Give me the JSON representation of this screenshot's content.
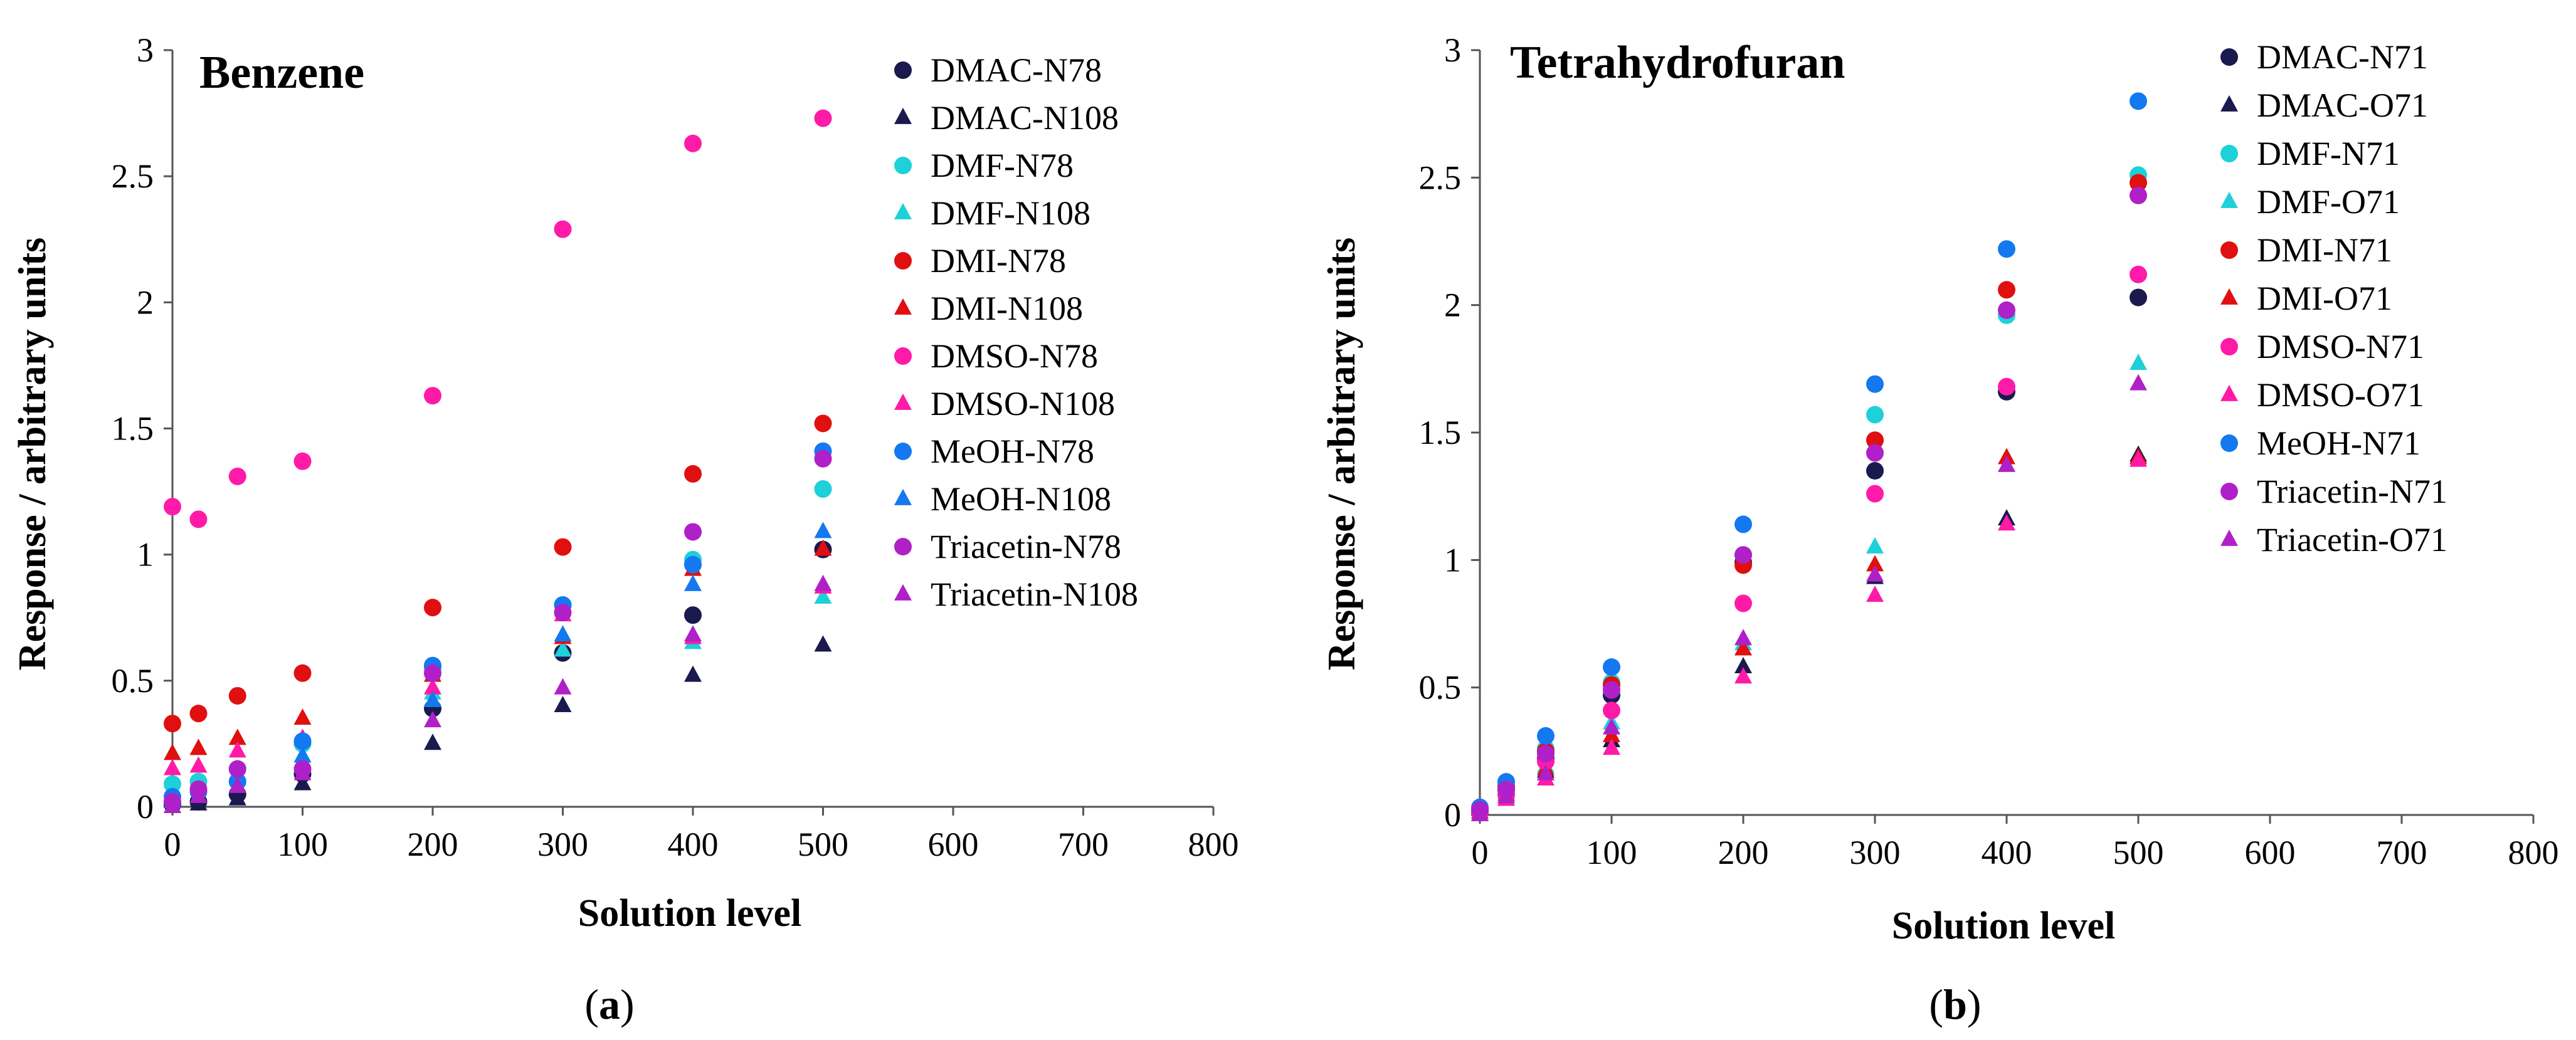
{
  "colors": {
    "DMAC": "#1a1a4e",
    "DMF": "#1ed0d8",
    "DMI": "#e01010",
    "DMSO": "#ff1aa8",
    "MeOH": "#1478f0",
    "Triacetin": "#b020c8"
  },
  "chart_data": [
    {
      "type": "scatter",
      "panel": "a",
      "title": "Benzene",
      "xlabel": "Solution level",
      "ylabel": "Response / arbitrary units",
      "xlim": [
        0,
        800
      ],
      "ylim": [
        0,
        3
      ],
      "xticks": [
        "0",
        "100",
        "200",
        "300",
        "400",
        "500",
        "600",
        "700",
        "800"
      ],
      "yticks": [
        "0",
        "0.5",
        "1",
        "1.5",
        "2",
        "2.5",
        "3"
      ],
      "legend_position": "right",
      "x": [
        0,
        20,
        50,
        100,
        200,
        300,
        400,
        500
      ],
      "series": [
        {
          "name": "DMAC-N78",
          "solvent": "DMAC",
          "marker": "circle",
          "values": [
            0.01,
            0.02,
            0.05,
            0.13,
            0.39,
            0.61,
            0.76,
            1.02
          ]
        },
        {
          "name": "DMAC-N108",
          "solvent": "DMAC",
          "marker": "triangle",
          "values": [
            0.0,
            0.01,
            0.03,
            0.09,
            0.25,
            0.4,
            0.52,
            0.64
          ]
        },
        {
          "name": "DMF-N78",
          "solvent": "DMF",
          "marker": "circle",
          "values": [
            0.09,
            0.1,
            0.15,
            0.25,
            0.55,
            0.8,
            0.98,
            1.26
          ]
        },
        {
          "name": "DMF-N108",
          "solvent": "DMF",
          "marker": "triangle",
          "values": [
            0.07,
            0.08,
            0.12,
            0.2,
            0.45,
            0.62,
            0.65,
            0.83
          ]
        },
        {
          "name": "DMI-N78",
          "solvent": "DMI",
          "marker": "circle",
          "values": [
            0.33,
            0.37,
            0.44,
            0.53,
            0.79,
            1.03,
            1.32,
            1.52
          ]
        },
        {
          "name": "DMI-N108",
          "solvent": "DMI",
          "marker": "triangle",
          "values": [
            0.21,
            0.23,
            0.27,
            0.35,
            0.52,
            0.67,
            0.94,
            1.02
          ]
        },
        {
          "name": "DMSO-N78",
          "solvent": "DMSO",
          "marker": "circle",
          "values": [
            1.19,
            1.14,
            1.31,
            1.37,
            1.63,
            2.29,
            2.63,
            2.73
          ]
        },
        {
          "name": "DMSO-N108",
          "solvent": "DMSO",
          "marker": "triangle",
          "values": [
            0.15,
            0.16,
            0.22,
            0.27,
            0.47,
            0.76,
            0.67,
            0.87
          ]
        },
        {
          "name": "MeOH-N78",
          "solvent": "MeOH",
          "marker": "circle",
          "values": [
            0.04,
            0.06,
            0.1,
            0.26,
            0.56,
            0.8,
            0.96,
            1.41
          ]
        },
        {
          "name": "MeOH-N108",
          "solvent": "MeOH",
          "marker": "triangle",
          "values": [
            0.02,
            0.04,
            0.08,
            0.2,
            0.42,
            0.68,
            0.88,
            1.09
          ]
        },
        {
          "name": "Triacetin-N78",
          "solvent": "Triacetin",
          "marker": "circle",
          "values": [
            0.02,
            0.07,
            0.15,
            0.15,
            0.53,
            0.77,
            1.09,
            1.38
          ]
        },
        {
          "name": "Triacetin-N108",
          "solvent": "Triacetin",
          "marker": "triangle",
          "values": [
            0.0,
            0.04,
            0.08,
            0.13,
            0.34,
            0.47,
            0.68,
            0.88
          ]
        }
      ]
    },
    {
      "type": "scatter",
      "panel": "b",
      "title": "Tetrahydrofuran",
      "xlabel": "Solution level",
      "ylabel": "Response / arbitrary units",
      "xlim": [
        0,
        800
      ],
      "ylim": [
        0,
        3
      ],
      "xticks": [
        "0",
        "100",
        "200",
        "300",
        "400",
        "500",
        "600",
        "700",
        "800"
      ],
      "yticks": [
        "0",
        "0.5",
        "1",
        "1.5",
        "2",
        "2.5",
        "3"
      ],
      "legend_position": "right",
      "x": [
        0,
        20,
        50,
        100,
        200,
        300,
        400,
        500
      ],
      "series": [
        {
          "name": "DMAC-N71",
          "solvent": "DMAC",
          "marker": "circle",
          "values": [
            0.01,
            0.1,
            0.22,
            0.47,
            0.99,
            1.35,
            1.66,
            2.03
          ]
        },
        {
          "name": "DMAC-O71",
          "solvent": "DMAC",
          "marker": "triangle",
          "values": [
            0.0,
            0.07,
            0.17,
            0.29,
            0.58,
            0.93,
            1.16,
            1.41
          ]
        },
        {
          "name": "DMF-N71",
          "solvent": "DMF",
          "marker": "circle",
          "values": [
            0.02,
            0.12,
            0.26,
            0.52,
            1.02,
            1.57,
            1.96,
            2.51
          ]
        },
        {
          "name": "DMF-O71",
          "solvent": "DMF",
          "marker": "triangle",
          "values": [
            0.01,
            0.09,
            0.19,
            0.36,
            0.67,
            1.05,
            1.37,
            1.77
          ]
        },
        {
          "name": "DMI-N71",
          "solvent": "DMI",
          "marker": "circle",
          "values": [
            0.02,
            0.11,
            0.25,
            0.51,
            0.98,
            1.47,
            2.06,
            2.48
          ]
        },
        {
          "name": "DMI-O71",
          "solvent": "DMI",
          "marker": "triangle",
          "values": [
            0.01,
            0.08,
            0.18,
            0.31,
            0.65,
            0.98,
            1.4,
            1.4
          ]
        },
        {
          "name": "DMSO-N71",
          "solvent": "DMSO",
          "marker": "circle",
          "values": [
            0.01,
            0.08,
            0.21,
            0.41,
            0.83,
            1.26,
            1.68,
            2.12
          ]
        },
        {
          "name": "DMSO-O71",
          "solvent": "DMSO",
          "marker": "triangle",
          "values": [
            0.0,
            0.06,
            0.14,
            0.26,
            0.54,
            0.86,
            1.14,
            1.39
          ]
        },
        {
          "name": "MeOH-N71",
          "solvent": "MeOH",
          "marker": "circle",
          "values": [
            0.03,
            0.13,
            0.31,
            0.58,
            1.14,
            1.69,
            2.22,
            2.8
          ]
        },
        {
          "name": "Triacetin-N71",
          "solvent": "Triacetin",
          "marker": "circle",
          "values": [
            0.02,
            0.1,
            0.24,
            0.49,
            1.02,
            1.42,
            1.98,
            2.43
          ]
        },
        {
          "name": "Triacetin-O71",
          "solvent": "Triacetin",
          "marker": "triangle",
          "values": [
            0.0,
            0.07,
            0.16,
            0.34,
            0.69,
            0.94,
            1.37,
            1.69
          ]
        }
      ]
    }
  ],
  "captions": [
    {
      "open": "(",
      "letter": "a",
      "close": ")"
    },
    {
      "open": "(",
      "letter": "b",
      "close": ")"
    }
  ]
}
